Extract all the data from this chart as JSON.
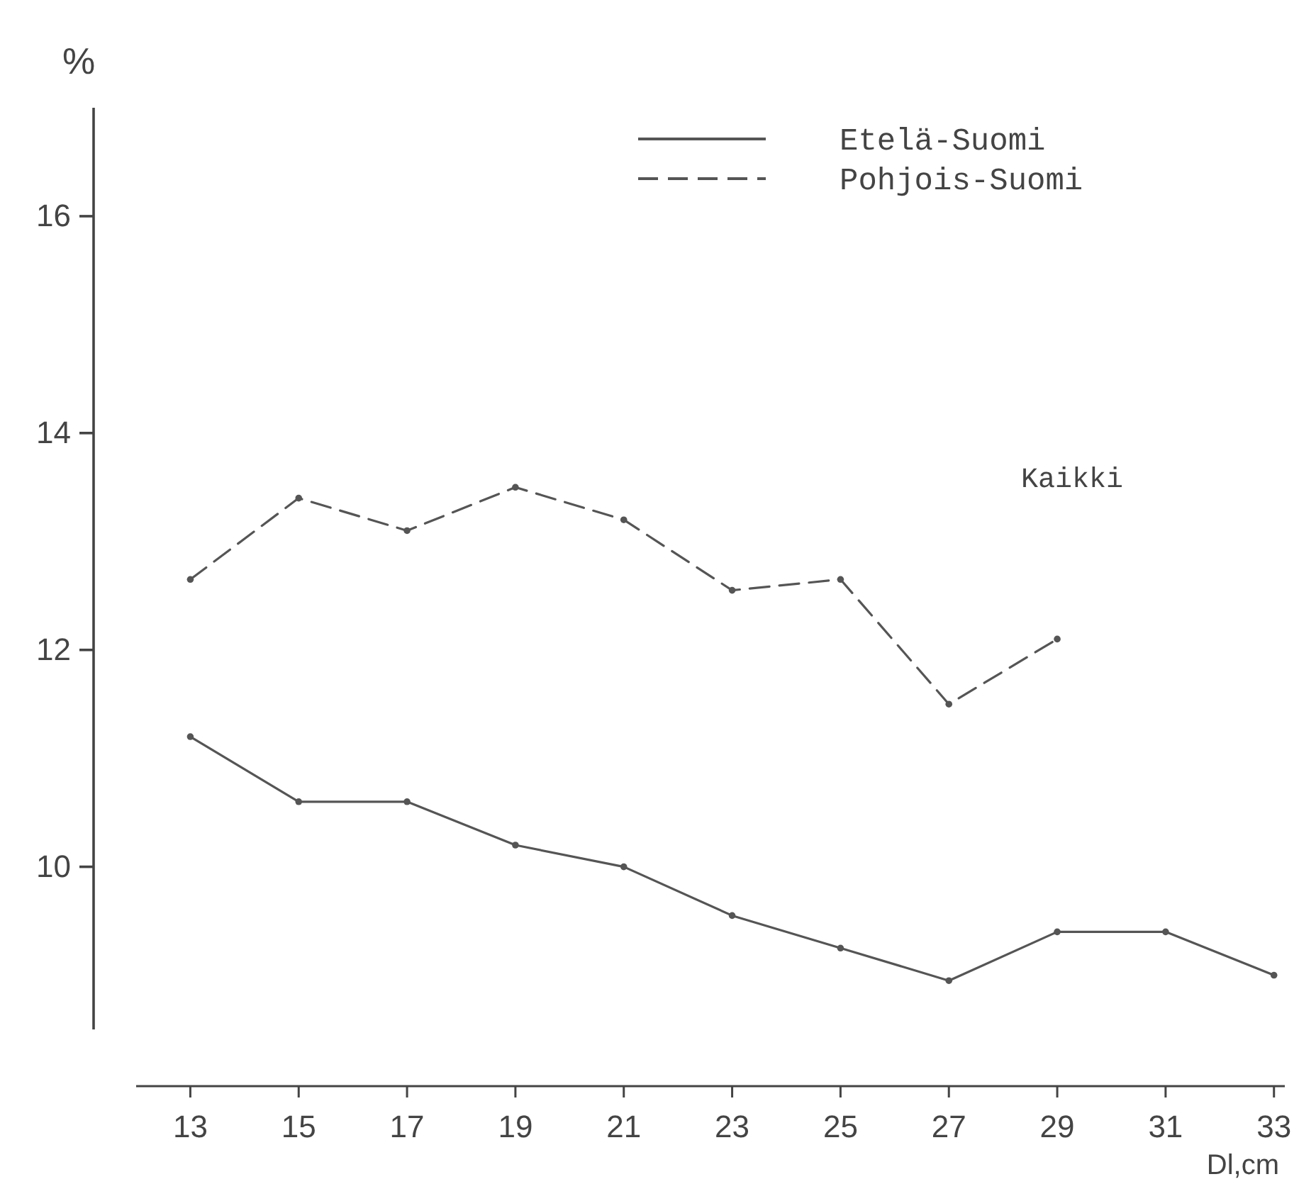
{
  "chart_data": {
    "type": "line",
    "ylabel": "%",
    "xlabel": "Dl,cm",
    "x": [
      13,
      15,
      17,
      19,
      21,
      23,
      25,
      27,
      29,
      31,
      33
    ],
    "series": [
      {
        "name": "Etelä-Suomi",
        "color": "#555555",
        "line_style": "solid",
        "values": [
          11.2,
          10.6,
          10.6,
          10.2,
          10.0,
          9.55,
          9.25,
          8.95,
          9.4,
          9.4,
          9.0
        ]
      },
      {
        "name": "Pohjois-Suomi",
        "color": "#555555",
        "line_style": "dashed",
        "values": [
          12.65,
          13.4,
          13.1,
          13.5,
          13.2,
          12.55,
          12.65,
          11.5,
          12.1,
          null,
          null
        ]
      }
    ],
    "xlim": [
      12,
      33.2
    ],
    "xticks": [
      13,
      15,
      17,
      19,
      21,
      23,
      25,
      27,
      29,
      31,
      33
    ],
    "ylim": [
      8.5,
      17
    ],
    "yticks": [
      10,
      12,
      14,
      16
    ],
    "grid": false,
    "legend": "top right",
    "marker": "circle",
    "annotations": [
      "Kaikki"
    ]
  }
}
